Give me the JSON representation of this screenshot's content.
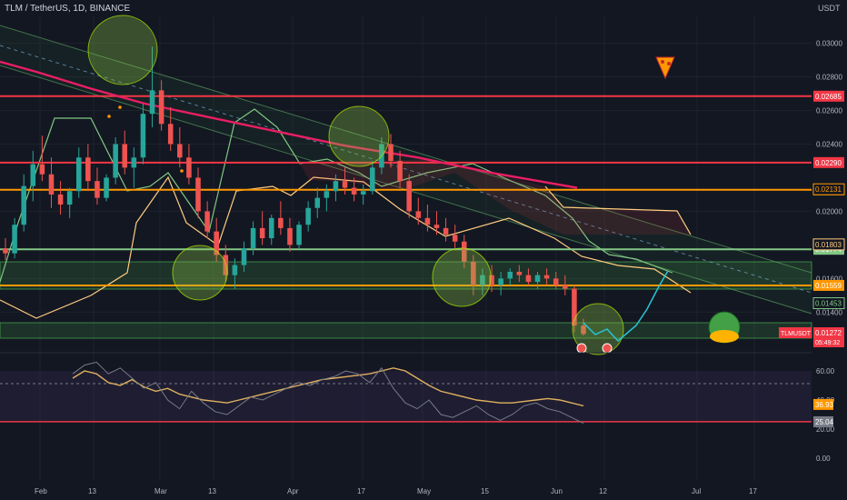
{
  "header": {
    "symbol_line": "TLM / TetherUS, 1D, BINANCE",
    "currency": "USDT"
  },
  "chart_data": [
    {
      "type": "candlestick",
      "title": "TLM / TetherUS, 1D, BINANCE",
      "price_axis_unit": "USDT",
      "y_ticks": [
        "0.03000",
        "0.02800",
        "0.02600",
        "0.02400",
        "0.02000",
        "0.01600",
        "0.01400"
      ],
      "ylim": [
        0.0118,
        0.0316
      ],
      "x_ticks": [
        "Feb",
        "13",
        "Mar",
        "13",
        "Apr",
        "17",
        "May",
        "15",
        "Jun",
        "12",
        "Jul",
        "17"
      ],
      "horizontal_levels": [
        {
          "value": 0.02685,
          "label": "0.02685",
          "color": "#f23645"
        },
        {
          "value": 0.0229,
          "label": "0.02290",
          "color": "#f23645"
        },
        {
          "value": 0.02128,
          "label": "0.02128",
          "color": "#ff9800"
        },
        {
          "value": 0.01774,
          "label": "0.01774",
          "color": "#81c784"
        },
        {
          "value": 0.01559,
          "label": "0.01559",
          "color": "#ff9800"
        }
      ],
      "price_labels": [
        {
          "value": 0.02131,
          "label": "0.02131",
          "color": "#ff9800"
        },
        {
          "value": 0.01803,
          "label": "0.01803",
          "color": "#ffcc80"
        },
        {
          "value": 0.01453,
          "label": "0.01453",
          "color": "#81c784"
        }
      ],
      "last_price": {
        "symbol": "TLMUSDT",
        "value": 0.01272,
        "label": "0.01272",
        "countdown": "05:49:32",
        "color": "#f23645"
      },
      "moving_average_200": [
        [
          0,
          0.0289
        ],
        [
          40,
          0.0283
        ],
        [
          100,
          0.0273
        ],
        [
          160,
          0.0264
        ],
        [
          230,
          0.0256
        ],
        [
          300,
          0.0248
        ],
        [
          380,
          0.0239
        ],
        [
          460,
          0.0232
        ],
        [
          540,
          0.0223
        ],
        [
          635,
          0.0214
        ]
      ],
      "candles": [
        {
          "o": 0.0178,
          "h": 0.0184,
          "l": 0.0171,
          "c": 0.0175
        },
        {
          "o": 0.0175,
          "h": 0.0196,
          "l": 0.0172,
          "c": 0.0192
        },
        {
          "o": 0.0192,
          "h": 0.0222,
          "l": 0.0188,
          "c": 0.0215
        },
        {
          "o": 0.0215,
          "h": 0.0236,
          "l": 0.0206,
          "c": 0.0228
        },
        {
          "o": 0.0228,
          "h": 0.0245,
          "l": 0.0218,
          "c": 0.0222
        },
        {
          "o": 0.0222,
          "h": 0.0232,
          "l": 0.0202,
          "c": 0.021
        },
        {
          "o": 0.021,
          "h": 0.0218,
          "l": 0.0198,
          "c": 0.0204
        },
        {
          "o": 0.0204,
          "h": 0.0214,
          "l": 0.0196,
          "c": 0.0212
        },
        {
          "o": 0.0212,
          "h": 0.0238,
          "l": 0.0208,
          "c": 0.0232
        },
        {
          "o": 0.0232,
          "h": 0.024,
          "l": 0.0212,
          "c": 0.0218
        },
        {
          "o": 0.0218,
          "h": 0.0226,
          "l": 0.0204,
          "c": 0.0208
        },
        {
          "o": 0.0208,
          "h": 0.0222,
          "l": 0.0206,
          "c": 0.022
        },
        {
          "o": 0.022,
          "h": 0.0244,
          "l": 0.0216,
          "c": 0.024
        },
        {
          "o": 0.024,
          "h": 0.0248,
          "l": 0.0222,
          "c": 0.0226
        },
        {
          "o": 0.0226,
          "h": 0.0238,
          "l": 0.0214,
          "c": 0.0232
        },
        {
          "o": 0.0232,
          "h": 0.0264,
          "l": 0.0228,
          "c": 0.0258
        },
        {
          "o": 0.0258,
          "h": 0.0298,
          "l": 0.025,
          "c": 0.0272
        },
        {
          "o": 0.0272,
          "h": 0.0278,
          "l": 0.0248,
          "c": 0.0252
        },
        {
          "o": 0.0252,
          "h": 0.0262,
          "l": 0.0236,
          "c": 0.024
        },
        {
          "o": 0.024,
          "h": 0.025,
          "l": 0.0226,
          "c": 0.0232
        },
        {
          "o": 0.0232,
          "h": 0.024,
          "l": 0.0216,
          "c": 0.022
        },
        {
          "o": 0.022,
          "h": 0.0226,
          "l": 0.0196,
          "c": 0.02
        },
        {
          "o": 0.02,
          "h": 0.0206,
          "l": 0.0184,
          "c": 0.0188
        },
        {
          "o": 0.0188,
          "h": 0.0196,
          "l": 0.017,
          "c": 0.0174
        },
        {
          "o": 0.0174,
          "h": 0.018,
          "l": 0.0158,
          "c": 0.0162
        },
        {
          "o": 0.0162,
          "h": 0.0172,
          "l": 0.0154,
          "c": 0.0168
        },
        {
          "o": 0.0168,
          "h": 0.0182,
          "l": 0.0164,
          "c": 0.0178
        },
        {
          "o": 0.0178,
          "h": 0.0194,
          "l": 0.0174,
          "c": 0.019
        },
        {
          "o": 0.019,
          "h": 0.02,
          "l": 0.018,
          "c": 0.0184
        },
        {
          "o": 0.0184,
          "h": 0.0198,
          "l": 0.018,
          "c": 0.0196
        },
        {
          "o": 0.0196,
          "h": 0.0206,
          "l": 0.0186,
          "c": 0.019
        },
        {
          "o": 0.019,
          "h": 0.0196,
          "l": 0.0176,
          "c": 0.018
        },
        {
          "o": 0.018,
          "h": 0.0194,
          "l": 0.0178,
          "c": 0.0192
        },
        {
          "o": 0.0192,
          "h": 0.0206,
          "l": 0.0188,
          "c": 0.0202
        },
        {
          "o": 0.0202,
          "h": 0.0214,
          "l": 0.0196,
          "c": 0.0208
        },
        {
          "o": 0.0208,
          "h": 0.0216,
          "l": 0.02,
          "c": 0.0212
        },
        {
          "o": 0.0212,
          "h": 0.0222,
          "l": 0.0206,
          "c": 0.0218
        },
        {
          "o": 0.0218,
          "h": 0.0226,
          "l": 0.021,
          "c": 0.0214
        },
        {
          "o": 0.0214,
          "h": 0.022,
          "l": 0.0206,
          "c": 0.021
        },
        {
          "o": 0.021,
          "h": 0.0216,
          "l": 0.0204,
          "c": 0.0212
        },
        {
          "o": 0.0212,
          "h": 0.023,
          "l": 0.021,
          "c": 0.0226
        },
        {
          "o": 0.0226,
          "h": 0.0244,
          "l": 0.0222,
          "c": 0.024
        },
        {
          "o": 0.024,
          "h": 0.0246,
          "l": 0.0226,
          "c": 0.023
        },
        {
          "o": 0.023,
          "h": 0.0236,
          "l": 0.0214,
          "c": 0.0218
        },
        {
          "o": 0.0218,
          "h": 0.0222,
          "l": 0.0196,
          "c": 0.02
        },
        {
          "o": 0.02,
          "h": 0.0208,
          "l": 0.0192,
          "c": 0.0196
        },
        {
          "o": 0.0196,
          "h": 0.0204,
          "l": 0.0188,
          "c": 0.0192
        },
        {
          "o": 0.0192,
          "h": 0.02,
          "l": 0.0186,
          "c": 0.019
        },
        {
          "o": 0.019,
          "h": 0.0196,
          "l": 0.0182,
          "c": 0.0186
        },
        {
          "o": 0.0186,
          "h": 0.0192,
          "l": 0.0178,
          "c": 0.0182
        },
        {
          "o": 0.0182,
          "h": 0.0186,
          "l": 0.0166,
          "c": 0.017
        },
        {
          "o": 0.017,
          "h": 0.0174,
          "l": 0.015,
          "c": 0.0156
        },
        {
          "o": 0.0156,
          "h": 0.0166,
          "l": 0.015,
          "c": 0.0162
        },
        {
          "o": 0.0162,
          "h": 0.0168,
          "l": 0.0152,
          "c": 0.0156
        },
        {
          "o": 0.0156,
          "h": 0.0164,
          "l": 0.015,
          "c": 0.016
        },
        {
          "o": 0.016,
          "h": 0.0166,
          "l": 0.0156,
          "c": 0.0164
        },
        {
          "o": 0.0164,
          "h": 0.0168,
          "l": 0.0158,
          "c": 0.0162
        },
        {
          "o": 0.0162,
          "h": 0.0166,
          "l": 0.0156,
          "c": 0.0158
        },
        {
          "o": 0.0158,
          "h": 0.0164,
          "l": 0.0154,
          "c": 0.0162
        },
        {
          "o": 0.0162,
          "h": 0.0166,
          "l": 0.0156,
          "c": 0.016
        },
        {
          "o": 0.016,
          "h": 0.0164,
          "l": 0.0154,
          "c": 0.0156
        },
        {
          "o": 0.0156,
          "h": 0.0162,
          "l": 0.015,
          "c": 0.0154
        },
        {
          "o": 0.0154,
          "h": 0.0156,
          "l": 0.0128,
          "c": 0.0132
        },
        {
          "o": 0.0132,
          "h": 0.0136,
          "l": 0.0126,
          "c": 0.0127
        }
      ],
      "annotations": [
        "buy-logo",
        "pizza-icon",
        "projected-path"
      ]
    },
    {
      "type": "line",
      "panel": "oscillator",
      "ylim": [
        0,
        70
      ],
      "y_ticks": [
        "60.00",
        "40.00",
        "20.00",
        "0.00"
      ],
      "levels": [
        {
          "value": 25.04,
          "label": "25.04",
          "color": "#f23645"
        }
      ],
      "value_labels": [
        {
          "value": 36.93,
          "label": "36.93",
          "color": "#ff9800"
        },
        {
          "value": 25.04,
          "label": "25.04",
          "color": "#787b86"
        }
      ],
      "series": [
        {
          "values": [
            55,
            60,
            58,
            52,
            50,
            54,
            49,
            46,
            48,
            44,
            42,
            40,
            39,
            38,
            40,
            42,
            44,
            46,
            48,
            50,
            52,
            54,
            55,
            56,
            57,
            58,
            60,
            62,
            60,
            55,
            50,
            46,
            44,
            42,
            40,
            39,
            38,
            38,
            39,
            40,
            41,
            40,
            38,
            36
          ],
          "color": "#e0b15f"
        },
        {
          "values": [
            58,
            64,
            66,
            58,
            62,
            55,
            48,
            52,
            40,
            34,
            46,
            38,
            32,
            30,
            36,
            42,
            40,
            44,
            48,
            52,
            50,
            54,
            56,
            60,
            58,
            52,
            62,
            48,
            38,
            34,
            40,
            30,
            28,
            32,
            36,
            30,
            26,
            30,
            36,
            38,
            34,
            32,
            28,
            24
          ],
          "color": "#787b86"
        }
      ]
    }
  ]
}
